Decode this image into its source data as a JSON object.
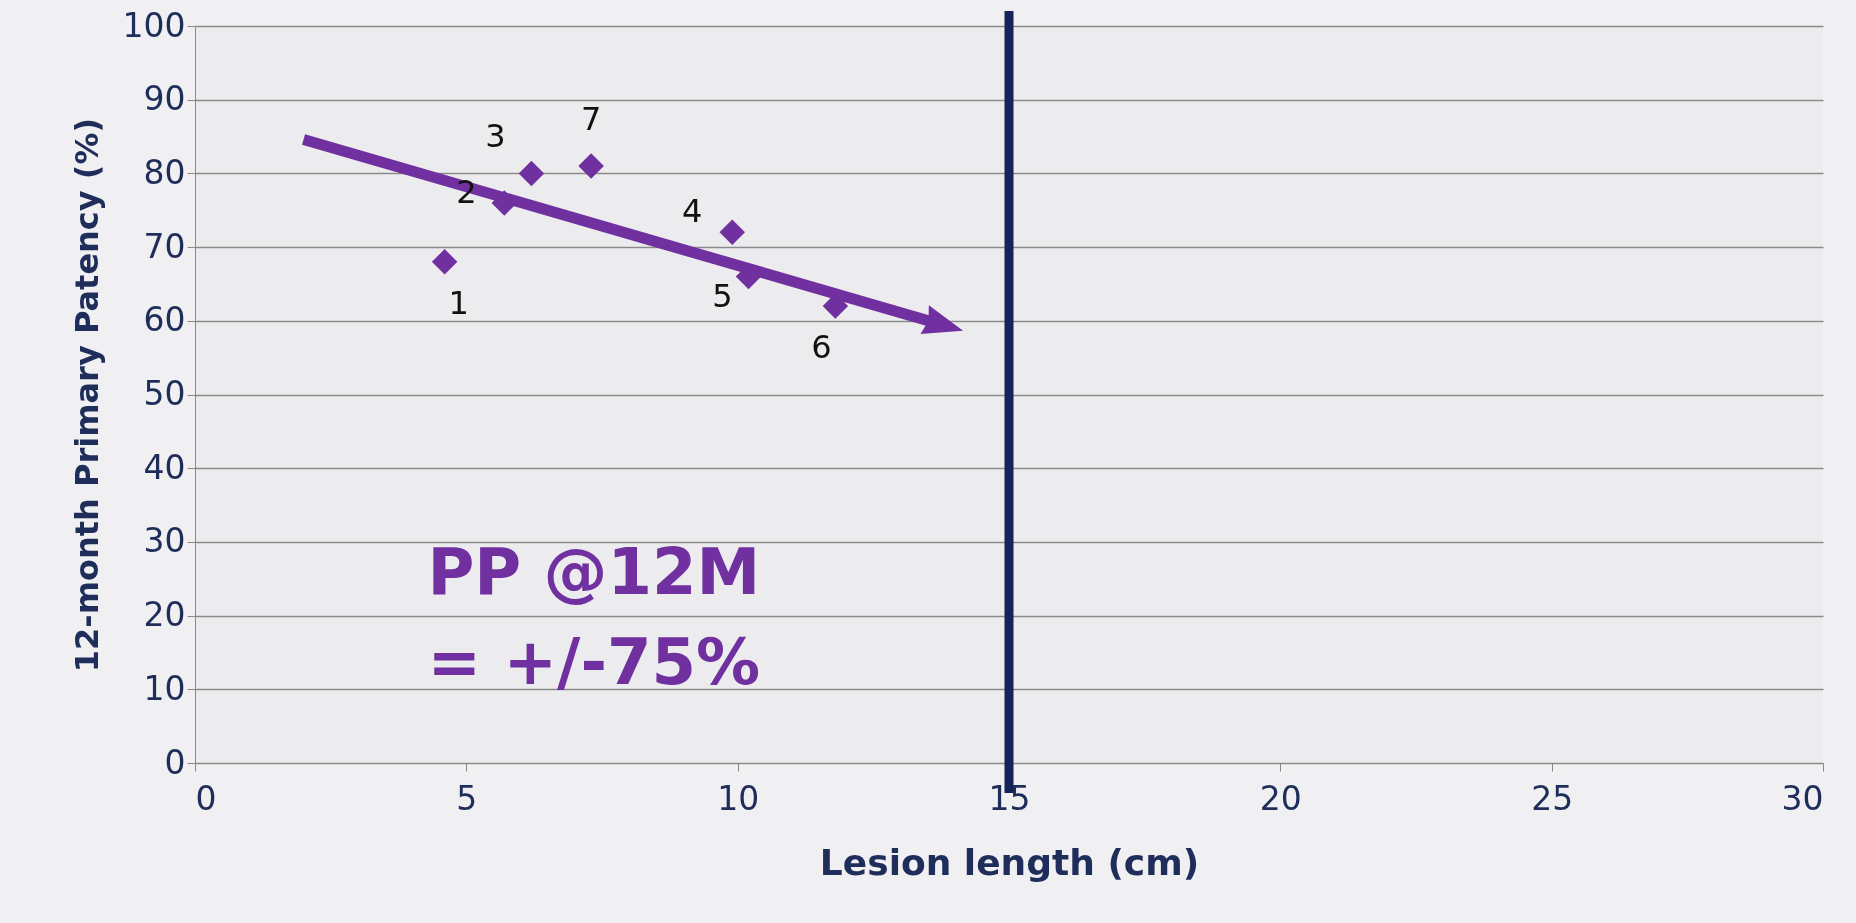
{
  "chart_data": {
    "type": "scatter",
    "xlabel": "Lesion length (cm)",
    "ylabel": "12-month Primary Patency (%)",
    "xlim": [
      0,
      30
    ],
    "xticks": [
      0,
      5,
      10,
      15,
      20,
      25,
      30
    ],
    "ylim": [
      0,
      100
    ],
    "yticks": [
      0,
      10,
      20,
      30,
      40,
      50,
      60,
      70,
      80,
      90,
      100
    ],
    "grid": "y",
    "marker": "diamond",
    "series": [
      {
        "color": "#7030a0",
        "x": [
          4.6,
          5.7,
          6.2,
          7.3,
          9.9,
          10.2,
          11.8
        ],
        "values": [
          68,
          76,
          80,
          81,
          72,
          66,
          62
        ]
      },
      {
        "type": "line",
        "color": "#7030a0",
        "x": [
          2.0,
          13.8
        ],
        "values": [
          84.6,
          59.4
        ]
      }
    ],
    "ref_lines": [
      {
        "axis": "x",
        "value": 15,
        "color": "#14235a"
      }
    ],
    "annotations": [
      {
        "text": "1",
        "x": 4.6,
        "y": 68
      },
      {
        "text": "2",
        "x": 5.7,
        "y": 76
      },
      {
        "text": "3",
        "x": 6.2,
        "y": 80
      },
      {
        "text": "7",
        "x": 7.3,
        "y": 81
      },
      {
        "text": "4",
        "x": 9.9,
        "y": 72
      },
      {
        "text": "5",
        "x": 10.2,
        "y": 66
      },
      {
        "text": "6",
        "x": 11.8,
        "y": 62
      },
      "PP @12M\n= +/-75%"
    ]
  }
}
